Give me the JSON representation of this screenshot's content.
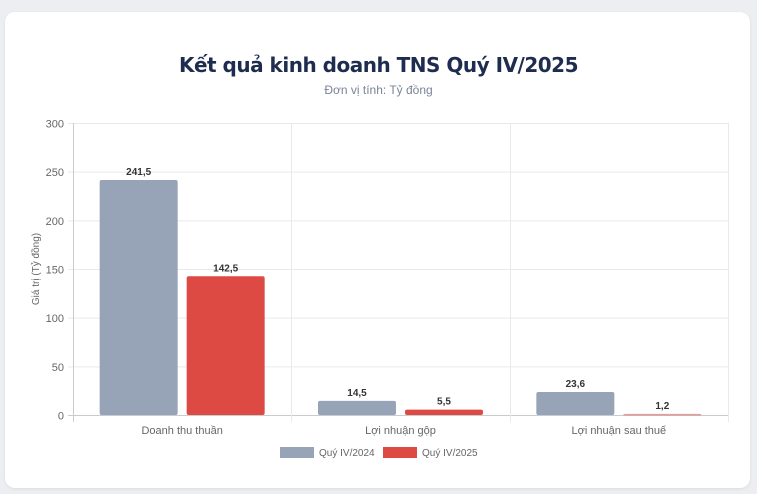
{
  "chart_data": {
    "type": "bar",
    "title": "Kết quả kinh doanh TNS Quý IV/2025",
    "subtitle": "Đơn vị tính: Tỷ đồng",
    "xlabel": "",
    "ylabel": "Giá trị (Tỷ đồng)",
    "ylim": [
      0,
      300
    ],
    "yticks": [
      0,
      50,
      100,
      150,
      200,
      250,
      300
    ],
    "grid": true,
    "legend_position": "bottom",
    "categories": [
      "Doanh thu thuần",
      "Lợi nhuận gộp",
      "Lợi nhuận sau thuế"
    ],
    "series": [
      {
        "name": "Quý IV/2024",
        "color": "#97a3b6",
        "values": [
          241.5,
          14.5,
          23.6
        ],
        "labels": [
          "241,5",
          "14,5",
          "23,6"
        ]
      },
      {
        "name": "Quý IV/2025",
        "color": "#dd4a43",
        "values": [
          142.5,
          5.5,
          1.2
        ],
        "labels": [
          "142,5",
          "5,5",
          "1,2"
        ],
        "faded_last": true
      }
    ]
  }
}
